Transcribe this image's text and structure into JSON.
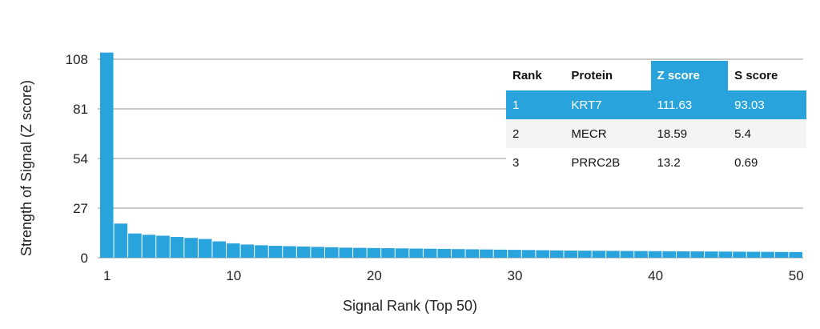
{
  "chart_data": {
    "type": "bar",
    "xlabel": "Signal Rank (Top 50)",
    "ylabel": "Strength of Signal (Z score)",
    "ylim": [
      0,
      108
    ],
    "yticks": [
      0,
      27,
      54,
      81,
      108
    ],
    "xticks": [
      1,
      10,
      20,
      30,
      40,
      50
    ],
    "grid": "horizontal",
    "bar_color": "#29a3dc",
    "x": [
      1,
      2,
      3,
      4,
      5,
      6,
      7,
      8,
      9,
      10,
      11,
      12,
      13,
      14,
      15,
      16,
      17,
      18,
      19,
      20,
      21,
      22,
      23,
      24,
      25,
      26,
      27,
      28,
      29,
      30,
      31,
      32,
      33,
      34,
      35,
      36,
      37,
      38,
      39,
      40,
      41,
      42,
      43,
      44,
      45,
      46,
      47,
      48,
      49,
      50
    ],
    "values": [
      111.63,
      18.59,
      13.2,
      12.5,
      12.0,
      11.3,
      10.8,
      10.2,
      8.9,
      7.8,
      7.2,
      6.8,
      6.5,
      6.3,
      6.1,
      5.9,
      5.7,
      5.5,
      5.4,
      5.3,
      5.2,
      5.1,
      5.0,
      4.9,
      4.8,
      4.7,
      4.6,
      4.5,
      4.4,
      4.3,
      4.2,
      4.1,
      4.0,
      3.9,
      3.85,
      3.8,
      3.75,
      3.7,
      3.65,
      3.6,
      3.55,
      3.5,
      3.45,
      3.4,
      3.35,
      3.3,
      3.25,
      3.2,
      3.15,
      3.1
    ]
  },
  "table": {
    "headers": [
      "Rank",
      "Protein",
      "Z score",
      "S score"
    ],
    "highlight_color": "#29a3dc",
    "rows": [
      {
        "rank": "1",
        "protein": "KRT7",
        "z": "111.63",
        "s": "93.03"
      },
      {
        "rank": "2",
        "protein": "MECR",
        "z": "18.59",
        "s": "5.4"
      },
      {
        "rank": "3",
        "protein": "PRRC2B",
        "z": "13.2",
        "s": "0.69"
      }
    ]
  }
}
